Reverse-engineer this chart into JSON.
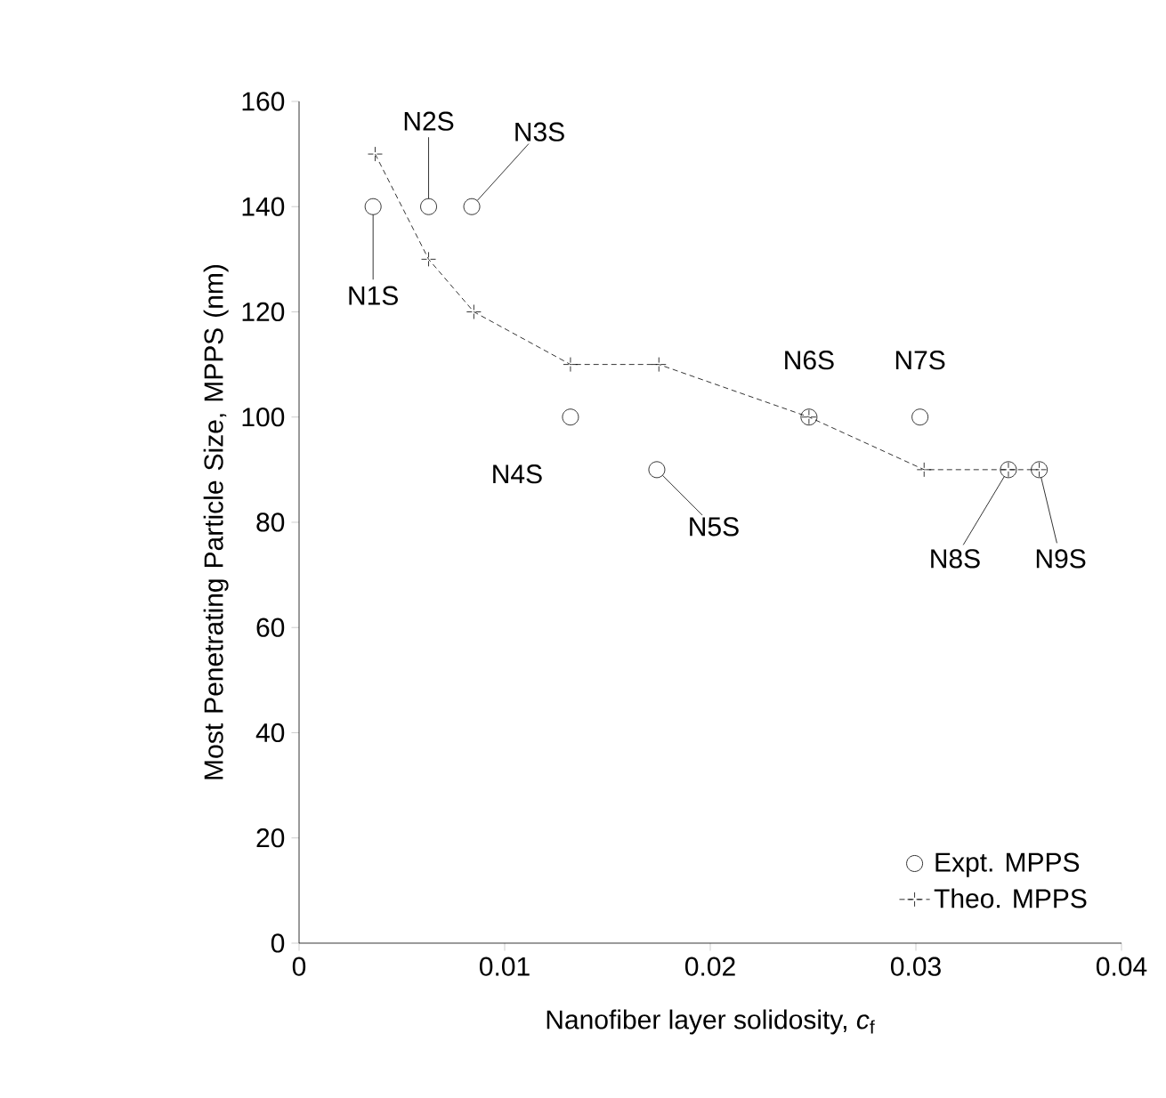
{
  "chart_data": {
    "type": "scatter",
    "xlabel": "Nanofiber layer solidosity, *c*$_{f}$",
    "ylabel": "Most Penetrating Particle Size, MPPS (nm)",
    "xlim": [
      0,
      0.04
    ],
    "ylim": [
      0,
      160
    ],
    "xticks": [
      0,
      0.01,
      0.02,
      0.03,
      0.04
    ],
    "yticks": [
      0,
      20,
      40,
      60,
      80,
      100,
      120,
      140,
      160
    ],
    "legend": "bottom right",
    "grid": false,
    "series": [
      {
        "name": "Expt. MPPS",
        "type": "scatter",
        "marker": "circle",
        "color": "#000000",
        "x": [
          0.0036,
          0.0063,
          0.0084,
          0.0132,
          0.0174,
          0.0248,
          0.0302,
          0.0345,
          0.036
        ],
        "values": [
          140,
          140,
          140,
          100,
          90,
          100,
          100,
          90,
          90
        ]
      },
      {
        "name": "Theo. MPPS",
        "type": "line",
        "marker": "cross",
        "line_style": "dashed",
        "color": "#000000",
        "x": [
          0.0037,
          0.0063,
          0.0085,
          0.0132,
          0.0175,
          0.0248,
          0.0304,
          0.0345,
          0.036
        ],
        "values": [
          150,
          130,
          120,
          110,
          110,
          100,
          90,
          90,
          90
        ]
      }
    ],
    "annotations": [
      {
        "text": "N1S",
        "x": 0.0036,
        "y": 140
      },
      {
        "text": "N2S",
        "x": 0.0063,
        "y": 140
      },
      {
        "text": "N3S",
        "x": 0.0084,
        "y": 140
      },
      {
        "text": "N4S",
        "x": 0.0132,
        "y": 100
      },
      {
        "text": "N5S",
        "x": 0.0174,
        "y": 90
      },
      {
        "text": "N6S",
        "x": 0.0248,
        "y": 100
      },
      {
        "text": "N7S",
        "x": 0.0302,
        "y": 100
      },
      {
        "text": "N8S",
        "x": 0.0345,
        "y": 90
      },
      {
        "text": "N9S",
        "x": 0.036,
        "y": 90
      }
    ]
  }
}
